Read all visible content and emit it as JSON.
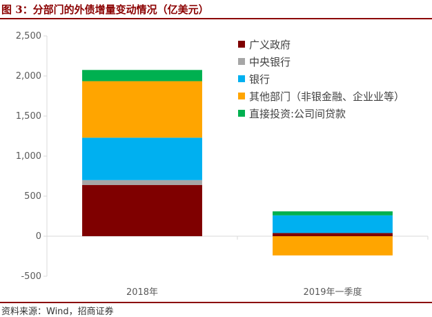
{
  "figure": {
    "title": "图 3：分部门的外债增量变动情况（亿美元）",
    "source": "资料来源：Wind，招商证券"
  },
  "colors": {
    "rule": "#8b0000",
    "title": "#8b0000",
    "axis": "#d9d9d9"
  },
  "chart_data": {
    "type": "bar",
    "stacked": true,
    "categories": [
      "2018年",
      "2019年一季度"
    ],
    "series": [
      {
        "name": "广义政府",
        "color": "#7f0000",
        "values": [
          640,
          40
        ]
      },
      {
        "name": "中央银行",
        "color": "#a6a6a6",
        "values": [
          60,
          0
        ]
      },
      {
        "name": "银行",
        "color": "#00b0f0",
        "values": [
          530,
          220
        ]
      },
      {
        "name": "其他部门（非银金融、企业业等）",
        "color": "#ffa500",
        "values": [
          705,
          -240
        ]
      },
      {
        "name": "直接投资:公司间贷款",
        "color": "#00b050",
        "values": [
          140,
          50
        ]
      }
    ],
    "yticks": [
      -500,
      0,
      500,
      1000,
      1500,
      2000,
      2500
    ],
    "ytick_labels": [
      "-500",
      "0",
      "500",
      "1,000",
      "1,500",
      "2,000",
      "2,500"
    ],
    "ylim": [
      -500,
      2500
    ],
    "grid": false,
    "legend_position": "top-right"
  }
}
